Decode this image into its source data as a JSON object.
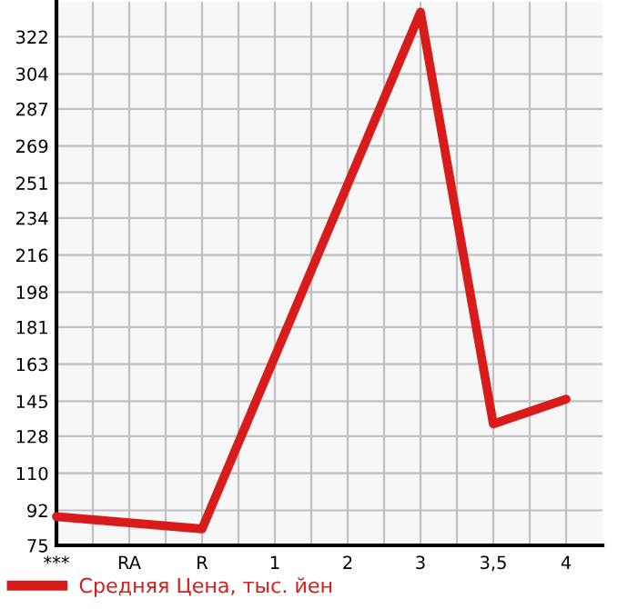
{
  "chart_data": {
    "type": "line",
    "categories": [
      "***",
      "RA",
      "R",
      "1",
      "2",
      "3",
      "3,5",
      "4"
    ],
    "series": [
      {
        "name": "Средняя Цена, тыс. йен",
        "color": "#d81c1c",
        "values": [
          89,
          null,
          83,
          null,
          null,
          334,
          134,
          146
        ]
      }
    ],
    "ylim": [
      75,
      339
    ],
    "yticks": [
      75,
      92,
      110,
      128,
      145,
      163,
      181,
      198,
      216,
      234,
      251,
      269,
      287,
      304,
      322
    ],
    "grid": true,
    "legend": "bottom left",
    "marker": "none",
    "line_style": "solid"
  }
}
